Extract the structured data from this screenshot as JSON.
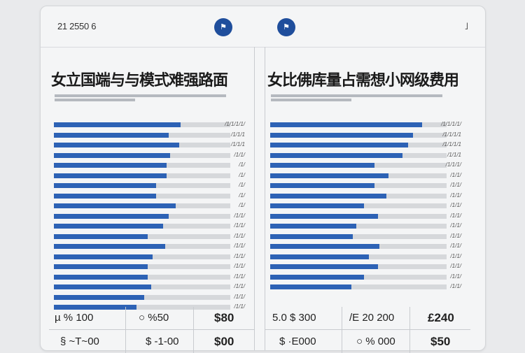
{
  "header": {
    "date": "21 2550 6",
    "left_button_icon": "⚑",
    "right_button_icon": "⚑",
    "menu_icon": "˩"
  },
  "colors": {
    "accent": "#2d62b5",
    "track": "#d6d8db",
    "header_button": "#1f4e9c"
  },
  "left_panel": {
    "title": "女立国端与与模式难强路面",
    "bars": [
      {
        "value": 0.72,
        "label": "/1/1/1/1/"
      },
      {
        "value": 0.65,
        "label": "/1/1/1"
      },
      {
        "value": 0.71,
        "label": "/1/1/1"
      },
      {
        "value": 0.66,
        "label": "/1/1/"
      },
      {
        "value": 0.64,
        "label": "/1/"
      },
      {
        "value": 0.64,
        "label": "/1/"
      },
      {
        "value": 0.58,
        "label": "/1/"
      },
      {
        "value": 0.58,
        "label": "/1/"
      },
      {
        "value": 0.69,
        "label": "/1/"
      },
      {
        "value": 0.65,
        "label": "/1/1/"
      },
      {
        "value": 0.62,
        "label": "/1/1/"
      },
      {
        "value": 0.53,
        "label": "/1/1/"
      },
      {
        "value": 0.63,
        "label": "/1/1/"
      },
      {
        "value": 0.56,
        "label": "/1/1/"
      },
      {
        "value": 0.53,
        "label": "/1/1/"
      },
      {
        "value": 0.53,
        "label": "/1/1/"
      },
      {
        "value": 0.55,
        "label": "/1/1/"
      },
      {
        "value": 0.51,
        "label": "/1/1/"
      },
      {
        "value": 0.47,
        "label": "/1/1/"
      }
    ],
    "footer": {
      "r1c1": "µ  %  100",
      "r1c2": "○  %50",
      "r1c3": "$80",
      "r2c1": "§ ~T~00",
      "r2c2": "$ -1-00",
      "r2c3": "$00"
    }
  },
  "right_panel": {
    "title": "女比佛库量占需想小网级费用",
    "bars": [
      {
        "value": 0.86,
        "label": "/1/1/1/1/"
      },
      {
        "value": 0.81,
        "label": "/1/1/1/1"
      },
      {
        "value": 0.78,
        "label": "/1/1/1/1"
      },
      {
        "value": 0.75,
        "label": "/1/1/1"
      },
      {
        "value": 0.59,
        "label": "/1/1/1/"
      },
      {
        "value": 0.67,
        "label": "/1/1/"
      },
      {
        "value": 0.59,
        "label": "/1/1/"
      },
      {
        "value": 0.66,
        "label": "/1/1/"
      },
      {
        "value": 0.53,
        "label": "/1/1/"
      },
      {
        "value": 0.61,
        "label": "/1/1/"
      },
      {
        "value": 0.49,
        "label": "/1/1/"
      },
      {
        "value": 0.47,
        "label": "/1/1/"
      },
      {
        "value": 0.62,
        "label": "/1/1/"
      },
      {
        "value": 0.56,
        "label": "/1/1/"
      },
      {
        "value": 0.61,
        "label": "/1/1/"
      },
      {
        "value": 0.53,
        "label": "/1/1/"
      },
      {
        "value": 0.46,
        "label": "/1/1/"
      }
    ],
    "footer": {
      "r1c1": "5.0    $ 300",
      "r1c2": "/E 20  200",
      "r1c3": "£240",
      "r2c1": "$ ·E000",
      "r2c2": "○  %  000",
      "r2c3": "$50"
    }
  }
}
